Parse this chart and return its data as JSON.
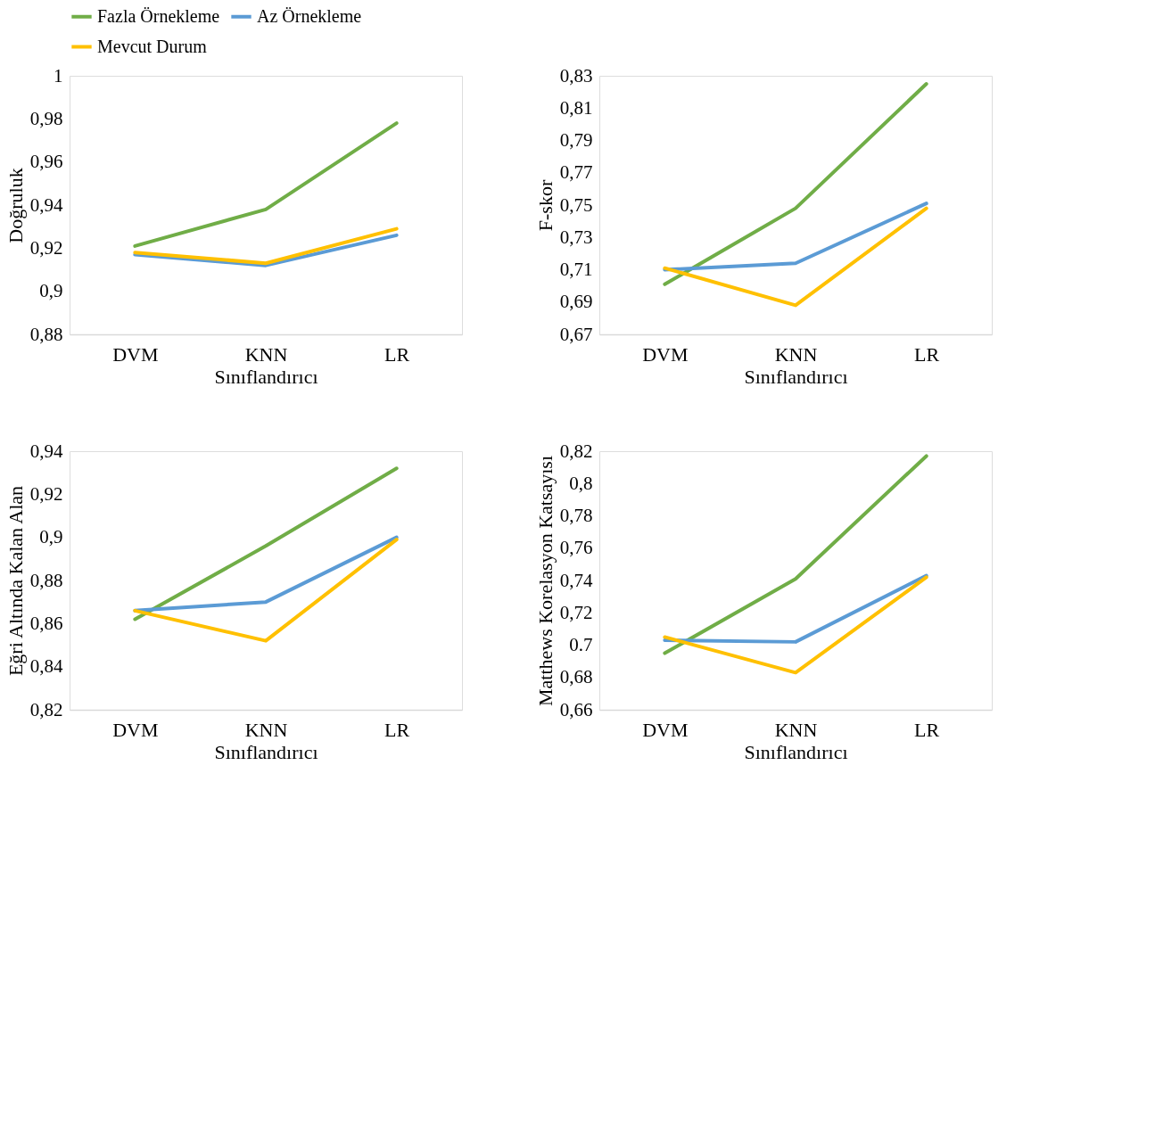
{
  "chart_data": [
    {
      "type": "line",
      "xlabel": "Sınıflandırıcı",
      "ylabel": "Doğruluk",
      "categories": [
        "DVM",
        "KNN",
        "LR"
      ],
      "legend": "top left",
      "grid": false,
      "line_style": "solid",
      "marker": "none",
      "ylim": [
        0.88,
        1
      ],
      "yticks": [
        {
          "value": 0.88,
          "label": "0,88"
        },
        {
          "value": 0.9,
          "label": "0,9"
        },
        {
          "value": 0.92,
          "label": "0,92"
        },
        {
          "value": 0.94,
          "label": "0,94"
        },
        {
          "value": 0.96,
          "label": "0,96"
        },
        {
          "value": 0.98,
          "label": "0,98"
        },
        1
      ],
      "series": [
        {
          "name": "Fazla Örnekleme",
          "color": "#70ad47",
          "values": [
            0.921,
            0.938,
            0.978
          ]
        },
        {
          "name": "Az Örnekleme",
          "color": "#5b9bd5",
          "values": [
            0.917,
            0.912,
            0.926
          ]
        },
        {
          "name": "Mevcut Durum",
          "color": "#ffc000",
          "values": [
            0.918,
            0.913,
            0.929
          ]
        }
      ]
    },
    {
      "type": "line",
      "xlabel": "Sınıflandırıcı",
      "ylabel": "F-skor",
      "categories": [
        "DVM",
        "KNN",
        "LR"
      ],
      "legend": "top left",
      "grid": false,
      "line_style": "solid",
      "marker": "none",
      "ylim": [
        0.67,
        0.83
      ],
      "yticks": [
        {
          "value": 0.67,
          "label": "0,67"
        },
        {
          "value": 0.69,
          "label": "0,69"
        },
        {
          "value": 0.71,
          "label": "0,71"
        },
        {
          "value": 0.73,
          "label": "0,73"
        },
        {
          "value": 0.75,
          "label": "0,75"
        },
        {
          "value": 0.77,
          "label": "0,77"
        },
        {
          "value": 0.79,
          "label": "0,79"
        },
        {
          "value": 0.81,
          "label": "0,81"
        },
        {
          "value": 0.83,
          "label": "0,83"
        }
      ],
      "series": [
        {
          "name": "Fazla Örnekleme",
          "color": "#70ad47",
          "values": [
            0.701,
            0.748,
            0.825
          ]
        },
        {
          "name": "Az Örnekleme",
          "color": "#5b9bd5",
          "values": [
            0.71,
            0.714,
            0.751
          ]
        },
        {
          "name": "Mevcut Durum",
          "color": "#ffc000",
          "values": [
            0.711,
            0.688,
            0.748
          ]
        }
      ]
    },
    {
      "type": "line",
      "xlabel": "Sınıflandırıcı",
      "ylabel": "Eğri Altında Kalan Alan",
      "categories": [
        "DVM",
        "KNN",
        "LR"
      ],
      "legend": "top left",
      "grid": false,
      "line_style": "solid",
      "marker": "none",
      "ylim": [
        0.82,
        0.94
      ],
      "yticks": [
        {
          "value": 0.82,
          "label": "0,82"
        },
        {
          "value": 0.84,
          "label": "0,84"
        },
        {
          "value": 0.86,
          "label": "0,86"
        },
        {
          "value": 0.88,
          "label": "0,88"
        },
        {
          "value": 0.9,
          "label": "0,9"
        },
        {
          "value": 0.92,
          "label": "0,92"
        },
        {
          "value": 0.94,
          "label": "0,94"
        }
      ],
      "series": [
        {
          "name": "Fazla Örnekleme",
          "color": "#70ad47",
          "values": [
            0.862,
            0.896,
            0.932
          ]
        },
        {
          "name": "Az Örnekleme",
          "color": "#5b9bd5",
          "values": [
            0.866,
            0.87,
            0.9
          ]
        },
        {
          "name": "Mevcut Durum",
          "color": "#ffc000",
          "values": [
            0.866,
            0.852,
            0.899
          ]
        }
      ]
    },
    {
      "type": "line",
      "xlabel": "Sınıflandırıcı",
      "ylabel": "Matthews Korelasyon Katsayısı",
      "categories": [
        "DVM",
        "KNN",
        "LR"
      ],
      "legend": "top left",
      "grid": false,
      "line_style": "solid",
      "marker": "none",
      "ylim": [
        0.66,
        0.82
      ],
      "yticks": [
        {
          "value": 0.66,
          "label": "0,66"
        },
        {
          "value": 0.68,
          "label": "0,68"
        },
        0.7,
        {
          "value": 0.72,
          "label": "0,72"
        },
        {
          "value": 0.74,
          "label": "0,74"
        },
        {
          "value": 0.76,
          "label": "0,76"
        },
        {
          "value": 0.78,
          "label": "0,78"
        },
        {
          "value": 0.8,
          "label": "0,8"
        },
        {
          "value": 0.82,
          "label": "0,82"
        }
      ],
      "series": [
        {
          "name": "Fazla Örnekleme",
          "color": "#70ad47",
          "values": [
            0.695,
            0.741,
            0.817
          ]
        },
        {
          "name": "Az Örnekleme",
          "color": "#5b9bd5",
          "values": [
            0.703,
            0.702,
            0.743
          ]
        },
        {
          "name": "Mevcut Durum",
          "color": "#ffc000",
          "values": [
            0.705,
            0.683,
            0.742
          ]
        }
      ]
    }
  ]
}
